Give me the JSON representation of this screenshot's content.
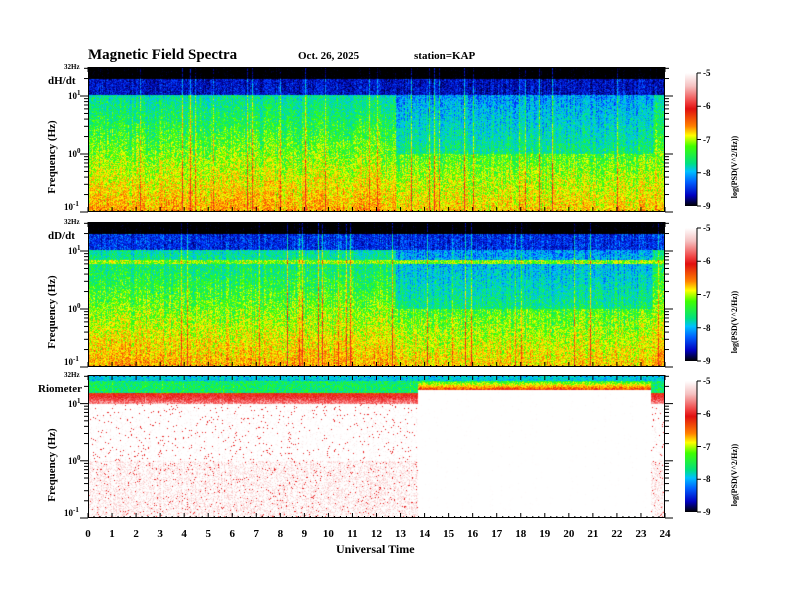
{
  "header": {
    "title": "Magnetic Field Spectra",
    "date": "Oct. 26, 2025",
    "station": "station=KAP"
  },
  "chart_data": [
    {
      "type": "heatmap",
      "label": "dH/dt",
      "ylabel": "Frequency (Hz)",
      "top_label": "32Hz",
      "yticks": [
        "10^1",
        "10^0",
        "10^-1"
      ],
      "ylim_log10": [
        -1,
        1.5
      ],
      "xlim": [
        0,
        24
      ],
      "colorbar": {
        "label": "log(PSD(V^2/Hz))",
        "ticks": [
          "-5",
          "-6",
          "-7",
          "-8",
          "-9"
        ],
        "range": [
          -9,
          -5
        ]
      }
    },
    {
      "type": "heatmap",
      "label": "dD/dt",
      "ylabel": "Frequency (Hz)",
      "top_label": "32Hz",
      "yticks": [
        "10^1",
        "10^0",
        "10^-1"
      ],
      "ylim_log10": [
        -1,
        1.5
      ],
      "xlim": [
        0,
        24
      ],
      "colorbar": {
        "label": "log(PSD(V^2/Hz))",
        "ticks": [
          "-5",
          "-6",
          "-7",
          "-8",
          "-9"
        ],
        "range": [
          -9,
          -5
        ]
      }
    },
    {
      "type": "heatmap",
      "label": "Riometer",
      "ylabel": "Frequency (Hz)",
      "top_label": "32Hz",
      "yticks": [
        "10^1",
        "10^0",
        "10^-1"
      ],
      "ylim_log10": [
        -1,
        1.5
      ],
      "xlim": [
        0,
        24
      ],
      "colorbar": {
        "label": "log(PSD(V^2/Hz))",
        "ticks": [
          "-5",
          "-6",
          "-7",
          "-8",
          "-9"
        ],
        "range": [
          -9,
          -5
        ]
      }
    }
  ],
  "xaxis": {
    "label": "Universal Time",
    "ticks": [
      "0",
      "1",
      "2",
      "3",
      "4",
      "5",
      "6",
      "7",
      "8",
      "9",
      "10",
      "11",
      "12",
      "13",
      "14",
      "15",
      "16",
      "17",
      "18",
      "19",
      "20",
      "21",
      "22",
      "23",
      "24"
    ]
  }
}
